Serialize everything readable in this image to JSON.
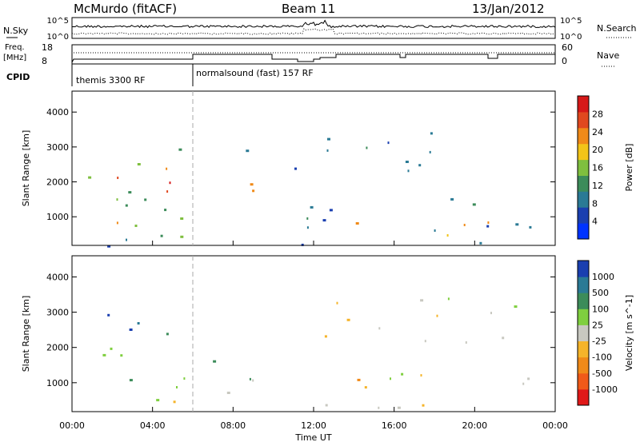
{
  "header": {
    "station": "McMurdo (fitACF)",
    "beam": "Beam 11",
    "date": "13/Jan/2012"
  },
  "sky_panel": {
    "left_label": "N.Sky",
    "right_label": "N.Search",
    "left_ticks": [
      "10^5",
      "10^0"
    ],
    "right_ticks": [
      "10^5",
      "10^0"
    ]
  },
  "freq_panel": {
    "left_label_line1": "Freq.",
    "left_label_line2": "[MHz]",
    "left_ticks": [
      "18",
      "8"
    ],
    "right_label": "Nave",
    "right_ticks": [
      "60",
      "0"
    ]
  },
  "cpid": {
    "label": "CPID",
    "modes": [
      {
        "text": "themis 3300 RF",
        "start_hour": 0
      },
      {
        "text": "normalsound (fast) 157 RF",
        "start_hour": 6
      }
    ]
  },
  "time_axis": {
    "label": "Time UT",
    "ticks": [
      "00:00",
      "04:00",
      "08:00",
      "12:00",
      "16:00",
      "20:00",
      "00:00"
    ]
  },
  "chart_data": [
    {
      "type": "heatmap",
      "title": "",
      "xlabel": "",
      "ylabel": "Slant Range [km]",
      "xlim": [
        0,
        24
      ],
      "ylim": [
        180,
        4600
      ],
      "y_ticks": [
        "1000",
        "2000",
        "3000",
        "4000"
      ],
      "colorbar_label": "Power [dB]",
      "colorbar_ticks": [
        "4",
        "8",
        "12",
        "16",
        "20",
        "24",
        "28"
      ],
      "colorbar_range": [
        0,
        32
      ],
      "colors": [
        "#0033ff",
        "#1a3fb0",
        "#2a7a95",
        "#3c8c5a",
        "#7fbf3f",
        "#f2c418",
        "#f08a18",
        "#e0481f",
        "#d61818"
      ],
      "regions": [
        {
          "t0": 0.2,
          "t1": 5.8,
          "r0": 300,
          "r1": 3200,
          "value": 14
        },
        {
          "t0": 2.0,
          "t1": 5.0,
          "r0": 2000,
          "r1": 3100,
          "value": 26
        },
        {
          "t0": 0.2,
          "t1": 3.0,
          "r0": 600,
          "r1": 1300,
          "value": 22
        },
        {
          "t0": 3.8,
          "t1": 5.2,
          "r0": 700,
          "r1": 2900,
          "value": 27
        },
        {
          "t0": 1.0,
          "t1": 3.0,
          "r0": 300,
          "r1": 500,
          "value": 20
        },
        {
          "t0": 7.2,
          "t1": 9.0,
          "r0": 700,
          "r1": 2200,
          "value": 20
        },
        {
          "t0": 8.0,
          "t1": 9.2,
          "r0": 2300,
          "r1": 3000,
          "value": 9
        },
        {
          "t0": 9.8,
          "t1": 11.2,
          "r0": 2400,
          "r1": 3300,
          "value": 8
        },
        {
          "t0": 11.5,
          "t1": 22.0,
          "r0": 2300,
          "r1": 3500,
          "value": 9
        },
        {
          "t0": 11.5,
          "t1": 24.0,
          "r0": 600,
          "r1": 1800,
          "value": 10
        },
        {
          "t0": 13.5,
          "t1": 20.5,
          "r0": 500,
          "r1": 1100,
          "value": 22
        },
        {
          "t0": 20.5,
          "t1": 22.5,
          "r0": 500,
          "r1": 1000,
          "value": 25
        },
        {
          "t0": 0.0,
          "t1": 24.0,
          "r0": 180,
          "r1": 420,
          "value": 5
        }
      ]
    },
    {
      "type": "heatmap",
      "title": "",
      "xlabel": "Time UT",
      "ylabel": "Slant Range [km]",
      "xlim": [
        0,
        24
      ],
      "ylim": [
        180,
        4600
      ],
      "y_ticks": [
        "1000",
        "2000",
        "3000",
        "4000"
      ],
      "colorbar_label": "Velocity [m s^-1]",
      "colorbar_ticks": [
        "1000",
        "500",
        "100",
        "25",
        "-25",
        "-100",
        "-500",
        "-1000"
      ],
      "colorbar_range": [
        -1200,
        1200
      ],
      "colors": [
        "#e01818",
        "#f05a18",
        "#f08a18",
        "#f5b42a",
        "#c8c8c0",
        "#7fcf3f",
        "#3c8c5a",
        "#2a7a95",
        "#1a3fb0"
      ],
      "regions": [
        {
          "t0": 0.5,
          "t1": 5.5,
          "r0": 2500,
          "r1": 3300,
          "value": 900
        },
        {
          "t0": 0.2,
          "t1": 6.0,
          "r0": 500,
          "r1": 2500,
          "value": 350
        },
        {
          "t0": 6.5,
          "t1": 10.5,
          "r0": 500,
          "r1": 2000,
          "value": 350
        },
        {
          "t0": 10.5,
          "t1": 22.0,
          "r0": 2100,
          "r1": 3500,
          "value": 0
        },
        {
          "t0": 12.0,
          "t1": 17.5,
          "r0": 600,
          "r1": 1400,
          "value": -200
        },
        {
          "t0": 15.5,
          "t1": 19.5,
          "r0": 500,
          "r1": 1300,
          "value": 60
        },
        {
          "t0": 21.0,
          "t1": 24.0,
          "r0": 500,
          "r1": 1500,
          "value": 80
        },
        {
          "t0": 0.0,
          "t1": 24.0,
          "r0": 180,
          "r1": 500,
          "value": -60
        }
      ]
    }
  ]
}
